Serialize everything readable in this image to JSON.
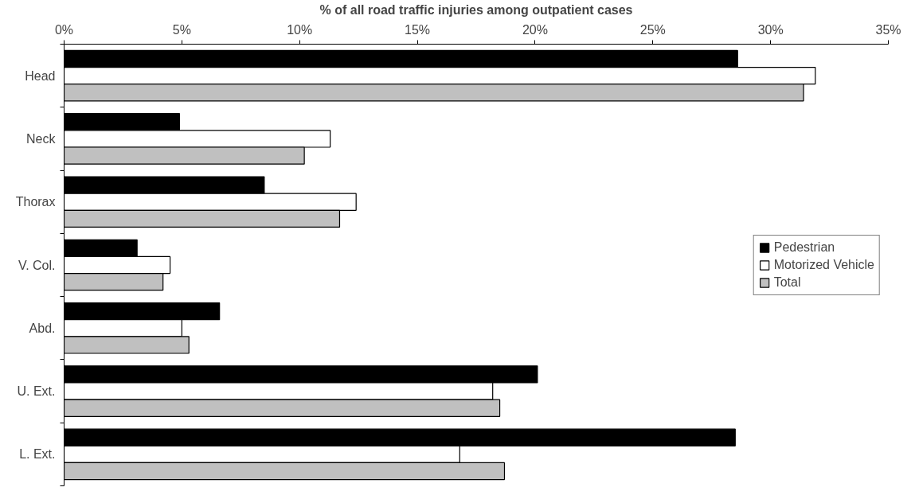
{
  "chart_data": {
    "type": "bar",
    "orientation": "horizontal",
    "xlabel": "% of all road traffic injuries among outpatient cases",
    "categories": [
      "Head",
      "Neck",
      "Thorax",
      "V. Col.",
      "Abd.",
      "U. Ext.",
      "L. Ext."
    ],
    "series": [
      {
        "name": "Pedestrian",
        "color": "#000000",
        "values": [
          28.6,
          4.9,
          8.5,
          3.1,
          6.6,
          20.1,
          28.5
        ]
      },
      {
        "name": "Motorized Vehicle",
        "color": "#ffffff",
        "values": [
          31.9,
          11.3,
          12.4,
          4.5,
          5.0,
          18.2,
          16.8
        ]
      },
      {
        "name": "Total",
        "color": "#c0c0c0",
        "values": [
          31.4,
          10.2,
          11.7,
          4.2,
          5.3,
          18.5,
          18.7
        ]
      }
    ],
    "xlim": [
      0,
      35
    ],
    "xticks": [
      {
        "value": 0,
        "label": "0%"
      },
      {
        "value": 5,
        "label": "5%"
      },
      {
        "value": 10,
        "label": "10%"
      },
      {
        "value": 15,
        "label": "15%"
      },
      {
        "value": 20,
        "label": "20%"
      },
      {
        "value": 25,
        "label": "25%"
      },
      {
        "value": 30,
        "label": "30%"
      },
      {
        "value": 35,
        "label": "35%"
      }
    ],
    "grid": false,
    "legend": "right"
  }
}
